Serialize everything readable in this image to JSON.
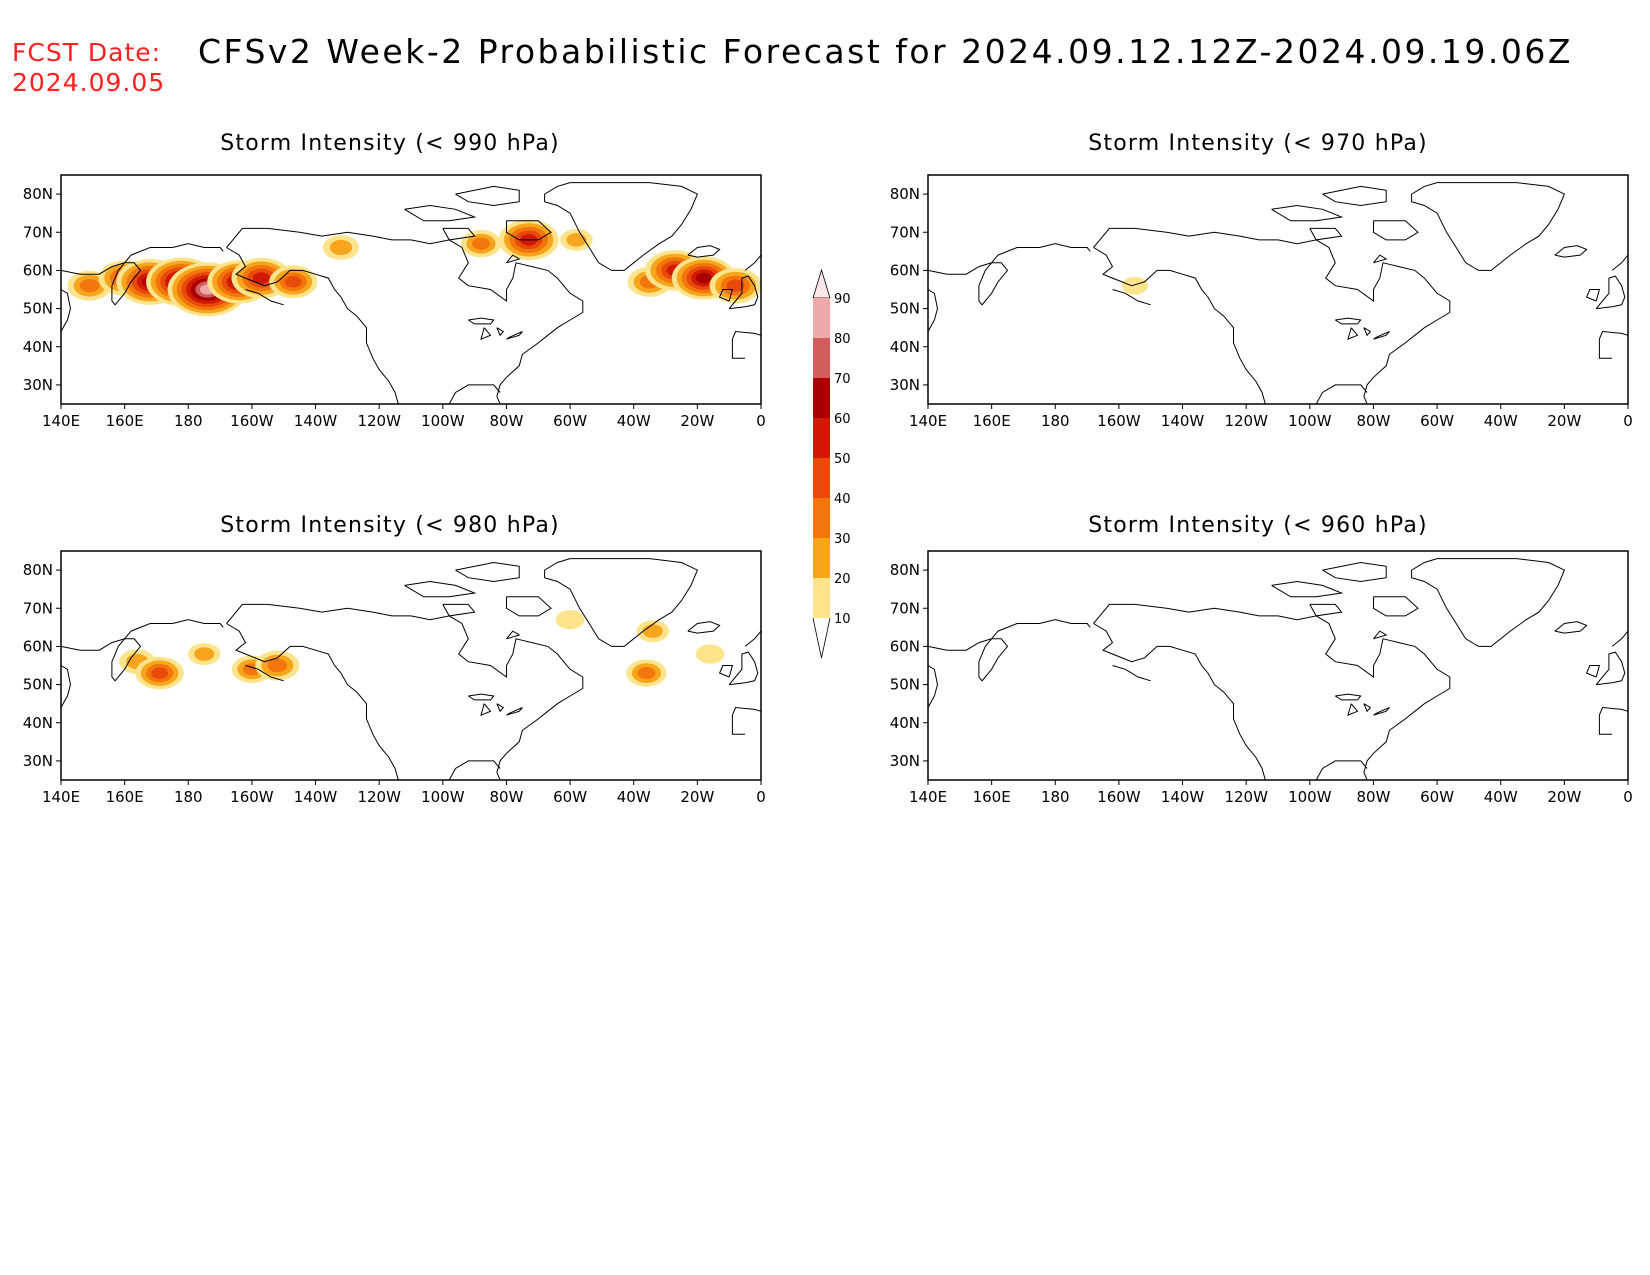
{
  "header": {
    "fcst_label": "FCST Date:",
    "fcst_date": "2024.09.05",
    "title": "CFSv2 Week-2 Probabilistic Forecast for 2024.09.12.12Z-2024.09.19.06Z"
  },
  "axes": {
    "lon_ticks": [
      "140E",
      "160E",
      "180",
      "160W",
      "140W",
      "120W",
      "100W",
      "80W",
      "60W",
      "40W",
      "20W",
      "0"
    ],
    "lat_ticks": [
      "80N",
      "70N",
      "60N",
      "50N",
      "40N",
      "30N"
    ]
  },
  "panels": [
    {
      "title": "Storm Intensity (< 990 hPa)",
      "blobs": [
        {
          "lon": 149,
          "lat": 56,
          "prob": 35
        },
        {
          "lon": 160,
          "lat": 58,
          "prob": 45
        },
        {
          "lon": 168,
          "lat": 57,
          "prob": 65
        },
        {
          "lon": 178,
          "lat": 57,
          "prob": 70
        },
        {
          "lon": 186,
          "lat": 55,
          "prob": 80
        },
        {
          "lon": 196,
          "lat": 57,
          "prob": 60
        },
        {
          "lon": 203,
          "lat": 58,
          "prob": 55
        },
        {
          "lon": 213,
          "lat": 57,
          "prob": 40
        },
        {
          "lon": 228,
          "lat": 66,
          "prob": 25
        },
        {
          "lon": 272,
          "lat": 67,
          "prob": 30
        },
        {
          "lon": 287,
          "lat": 68,
          "prob": 55
        },
        {
          "lon": 302,
          "lat": 68,
          "prob": 20
        },
        {
          "lon": 325,
          "lat": 57,
          "prob": 35
        },
        {
          "lon": 333,
          "lat": 60,
          "prob": 55
        },
        {
          "lon": 342,
          "lat": 58,
          "prob": 60
        },
        {
          "lon": 352,
          "lat": 56,
          "prob": 45
        }
      ]
    },
    {
      "title": "Storm Intensity (< 970 hPa)",
      "blobs": [
        {
          "lon": 205,
          "lat": 56,
          "prob": 12
        }
      ]
    },
    {
      "title": "Storm Intensity (< 980 hPa)",
      "blobs": [
        {
          "lon": 164,
          "lat": 56,
          "prob": 25
        },
        {
          "lon": 171,
          "lat": 53,
          "prob": 40
        },
        {
          "lon": 185,
          "lat": 58,
          "prob": 20
        },
        {
          "lon": 200,
          "lat": 54,
          "prob": 30
        },
        {
          "lon": 208,
          "lat": 55,
          "prob": 35
        },
        {
          "lon": 300,
          "lat": 67,
          "prob": 15
        },
        {
          "lon": 326,
          "lat": 64,
          "prob": 20
        },
        {
          "lon": 344,
          "lat": 58,
          "prob": 15
        },
        {
          "lon": 324,
          "lat": 53,
          "prob": 30
        }
      ]
    },
    {
      "title": "Storm Intensity (< 960 hPa)",
      "blobs": []
    }
  ],
  "colorbar": {
    "levels": [
      "10",
      "20",
      "30",
      "40",
      "50",
      "60",
      "70",
      "80",
      "90"
    ],
    "colors": [
      "#fff7b8",
      "#fde48c",
      "#f7a51c",
      "#f2760b",
      "#e84a0a",
      "#d01a06",
      "#a80000",
      "#d15d5d",
      "#eeaaaa",
      "#fde6e8"
    ]
  }
}
